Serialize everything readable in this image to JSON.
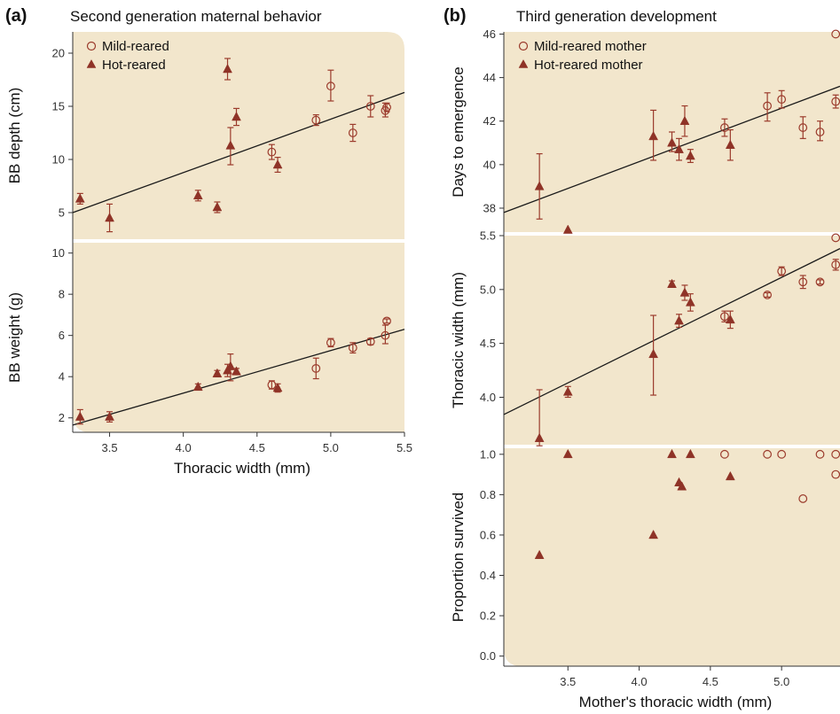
{
  "figure": {
    "panel_a": {
      "letter": "(a)",
      "title": "Second generation maternal behavior"
    },
    "panel_b": {
      "letter": "(b)",
      "title": "Third generation development"
    }
  },
  "colors": {
    "background": "#f2e6cc",
    "marker": "#9b3b2c",
    "marker_fill": "#8f3327",
    "fit_line": "#1a1a1a"
  },
  "chart_data": [
    {
      "id": "a_top",
      "type": "scatter",
      "ylabel": "BB depth (cm)",
      "xlabel": "",
      "xlim": [
        3.25,
        5.5
      ],
      "ylim": [
        2.5,
        22
      ],
      "yticks": [
        5,
        10,
        15,
        20
      ],
      "xticks": [],
      "legend": {
        "position": "top-left",
        "entries": [
          "Mild-reared",
          "Hot-reared"
        ]
      },
      "fit_line": {
        "x1": 3.25,
        "y1": 5.0,
        "x2": 5.5,
        "y2": 16.3
      },
      "series": [
        {
          "name": "Mild-reared",
          "marker": "open-circle",
          "points": [
            {
              "x": 4.6,
              "y": 10.7,
              "lo": 10.0,
              "hi": 11.4
            },
            {
              "x": 4.9,
              "y": 13.7,
              "lo": 13.2,
              "hi": 14.2
            },
            {
              "x": 5.0,
              "y": 16.9,
              "lo": 15.5,
              "hi": 18.4
            },
            {
              "x": 5.15,
              "y": 12.5,
              "lo": 11.7,
              "hi": 13.3
            },
            {
              "x": 5.27,
              "y": 15.0,
              "lo": 14.0,
              "hi": 16.0
            },
            {
              "x": 5.37,
              "y": 14.6,
              "lo": 14.0,
              "hi": 15.3
            },
            {
              "x": 5.38,
              "y": 14.9,
              "lo": 14.5,
              "hi": 15.3
            }
          ]
        },
        {
          "name": "Hot-reared",
          "marker": "filled-triangle",
          "points": [
            {
              "x": 3.3,
              "y": 6.3,
              "lo": 5.8,
              "hi": 6.8
            },
            {
              "x": 3.5,
              "y": 4.5,
              "lo": 3.2,
              "hi": 5.8
            },
            {
              "x": 4.1,
              "y": 6.6,
              "lo": 6.1,
              "hi": 7.1
            },
            {
              "x": 4.23,
              "y": 5.5,
              "lo": 5.0,
              "hi": 6.0
            },
            {
              "x": 4.3,
              "y": 18.5,
              "lo": 17.5,
              "hi": 19.5
            },
            {
              "x": 4.32,
              "y": 11.3,
              "lo": 9.5,
              "hi": 13.0
            },
            {
              "x": 4.36,
              "y": 14.0,
              "lo": 13.2,
              "hi": 14.8
            },
            {
              "x": 4.64,
              "y": 9.5,
              "lo": 8.8,
              "hi": 10.2
            }
          ]
        }
      ]
    },
    {
      "id": "a_bottom",
      "type": "scatter",
      "ylabel": "BB weight (g)",
      "xlabel": "Thoracic width (mm)",
      "xlim": [
        3.25,
        5.5
      ],
      "ylim": [
        1.3,
        10.5
      ],
      "yticks": [
        2,
        4,
        6,
        8,
        10
      ],
      "xticks": [
        3.5,
        4.0,
        4.5,
        5.0,
        5.5
      ],
      "xticklabels": [
        "3.5",
        "4.0",
        "4.5",
        "5.0",
        "5.5"
      ],
      "fit_line": {
        "x1": 3.25,
        "y1": 1.65,
        "x2": 5.5,
        "y2": 6.3
      },
      "series": [
        {
          "name": "Mild-reared",
          "marker": "open-circle",
          "points": [
            {
              "x": 4.6,
              "y": 3.6,
              "lo": 3.4,
              "hi": 3.8
            },
            {
              "x": 4.9,
              "y": 4.4,
              "lo": 3.9,
              "hi": 4.9
            },
            {
              "x": 5.0,
              "y": 5.65,
              "lo": 5.45,
              "hi": 5.85
            },
            {
              "x": 5.15,
              "y": 5.4,
              "lo": 5.15,
              "hi": 5.65
            },
            {
              "x": 5.27,
              "y": 5.7,
              "lo": 5.55,
              "hi": 5.85
            },
            {
              "x": 5.37,
              "y": 6.0,
              "lo": 5.6,
              "hi": 6.5
            },
            {
              "x": 5.38,
              "y": 6.7,
              "lo": 6.6,
              "hi": 6.8
            }
          ]
        },
        {
          "name": "Hot-reared",
          "marker": "filled-triangle",
          "points": [
            {
              "x": 3.3,
              "y": 2.05,
              "lo": 1.7,
              "hi": 2.4
            },
            {
              "x": 3.5,
              "y": 2.05,
              "lo": 1.8,
              "hi": 2.3
            },
            {
              "x": 4.1,
              "y": 3.5,
              "lo": 3.35,
              "hi": 3.65
            },
            {
              "x": 4.23,
              "y": 4.15,
              "lo": 4.0,
              "hi": 4.3
            },
            {
              "x": 4.3,
              "y": 4.3,
              "lo": 4.0,
              "hi": 4.6
            },
            {
              "x": 4.32,
              "y": 4.5,
              "lo": 3.8,
              "hi": 5.1
            },
            {
              "x": 4.36,
              "y": 4.25,
              "lo": 4.1,
              "hi": 4.4
            },
            {
              "x": 4.64,
              "y": 3.45,
              "lo": 3.25,
              "hi": 3.65
            }
          ]
        }
      ]
    },
    {
      "id": "b_top",
      "type": "scatter",
      "ylabel": "Days to emergence",
      "xlabel": "",
      "xlim": [
        3.05,
        5.41
      ],
      "ylim": [
        36.9,
        46.1
      ],
      "yticks": [
        38,
        40,
        42,
        44,
        46
      ],
      "xticks": [],
      "legend": {
        "position": "top-left",
        "entries": [
          "Mild-reared mother",
          "Hot-reared mother"
        ]
      },
      "fit_line": {
        "x1": 3.05,
        "y1": 37.8,
        "x2": 5.41,
        "y2": 43.6
      },
      "series": [
        {
          "name": "Mild-reared mother",
          "marker": "open-circle",
          "points": [
            {
              "x": 4.6,
              "y": 41.7,
              "lo": 41.3,
              "hi": 42.1
            },
            {
              "x": 4.9,
              "y": 42.7,
              "lo": 42.0,
              "hi": 43.3
            },
            {
              "x": 5.0,
              "y": 43.0,
              "lo": 42.6,
              "hi": 43.4
            },
            {
              "x": 5.15,
              "y": 41.7,
              "lo": 41.2,
              "hi": 42.2
            },
            {
              "x": 5.27,
              "y": 41.5,
              "lo": 41.1,
              "hi": 42.0
            },
            {
              "x": 5.38,
              "y": 42.9,
              "lo": 42.6,
              "hi": 43.2
            },
            {
              "x": 5.38,
              "y": 46.0,
              "lo": 46.0,
              "hi": 46.0
            }
          ]
        },
        {
          "name": "Hot-reared mother",
          "marker": "filled-triangle",
          "points": [
            {
              "x": 3.3,
              "y": 39.0,
              "lo": 37.5,
              "hi": 40.5
            },
            {
              "x": 3.5,
              "y": 37.0,
              "lo": 37.0,
              "hi": 37.0
            },
            {
              "x": 4.1,
              "y": 41.3,
              "lo": 40.2,
              "hi": 42.5
            },
            {
              "x": 4.23,
              "y": 41.0,
              "lo": 40.6,
              "hi": 41.5
            },
            {
              "x": 4.28,
              "y": 40.7,
              "lo": 40.2,
              "hi": 41.2
            },
            {
              "x": 4.32,
              "y": 42.0,
              "lo": 41.3,
              "hi": 42.7
            },
            {
              "x": 4.36,
              "y": 40.4,
              "lo": 40.1,
              "hi": 40.7
            },
            {
              "x": 4.64,
              "y": 40.9,
              "lo": 40.2,
              "hi": 41.6
            }
          ]
        }
      ]
    },
    {
      "id": "b_middle",
      "type": "scatter",
      "ylabel": "Thoracic width (mm)",
      "xlabel": "",
      "xlim": [
        3.05,
        5.41
      ],
      "ylim": [
        3.56,
        5.5
      ],
      "yticks": [
        4.0,
        4.5,
        5.0,
        5.5
      ],
      "yticklabels": [
        "4.0",
        "4.5",
        "5.0",
        "5.5"
      ],
      "xticks": [],
      "fit_line": {
        "x1": 3.05,
        "y1": 3.84,
        "x2": 5.41,
        "y2": 5.38
      },
      "series": [
        {
          "name": "Mild-reared mother",
          "marker": "open-circle",
          "points": [
            {
              "x": 4.6,
              "y": 4.75,
              "lo": 4.7,
              "hi": 4.8
            },
            {
              "x": 4.9,
              "y": 4.95,
              "lo": 4.93,
              "hi": 4.97
            },
            {
              "x": 5.0,
              "y": 5.17,
              "lo": 5.13,
              "hi": 5.21
            },
            {
              "x": 5.15,
              "y": 5.07,
              "lo": 5.01,
              "hi": 5.13
            },
            {
              "x": 5.27,
              "y": 5.07,
              "lo": 5.05,
              "hi": 5.09
            },
            {
              "x": 5.38,
              "y": 5.23,
              "lo": 5.18,
              "hi": 5.28
            },
            {
              "x": 5.38,
              "y": 5.48,
              "lo": 5.48,
              "hi": 5.48
            }
          ]
        },
        {
          "name": "Hot-reared mother",
          "marker": "filled-triangle",
          "points": [
            {
              "x": 3.3,
              "y": 3.62,
              "lo": 3.55,
              "hi": 4.07
            },
            {
              "x": 3.5,
              "y": 4.05,
              "lo": 4.0,
              "hi": 4.1
            },
            {
              "x": 4.1,
              "y": 4.4,
              "lo": 4.02,
              "hi": 4.76
            },
            {
              "x": 4.23,
              "y": 5.05,
              "lo": 5.02,
              "hi": 5.08
            },
            {
              "x": 4.28,
              "y": 4.71,
              "lo": 4.65,
              "hi": 4.77
            },
            {
              "x": 4.32,
              "y": 4.97,
              "lo": 4.9,
              "hi": 5.04
            },
            {
              "x": 4.36,
              "y": 4.88,
              "lo": 4.8,
              "hi": 4.96
            },
            {
              "x": 4.64,
              "y": 4.72,
              "lo": 4.64,
              "hi": 4.8
            }
          ]
        }
      ]
    },
    {
      "id": "b_bottom",
      "type": "scatter",
      "ylabel": "Proportion survived",
      "xlabel": "Mother's thoracic width (mm)",
      "xlim": [
        3.05,
        5.41
      ],
      "ylim": [
        -0.05,
        1.03
      ],
      "yticks": [
        0.0,
        0.2,
        0.4,
        0.6,
        0.8,
        1.0
      ],
      "yticklabels": [
        "0.0",
        "0.2",
        "0.4",
        "0.6",
        "0.8",
        "1.0"
      ],
      "xticks": [
        3.5,
        4.0,
        4.5,
        5.0
      ],
      "xticklabels": [
        "3.5",
        "4.0",
        "4.5",
        "5.0"
      ],
      "series": [
        {
          "name": "Mild-reared mother",
          "marker": "open-circle",
          "points": [
            {
              "x": 4.6,
              "y": 1.0
            },
            {
              "x": 4.9,
              "y": 1.0
            },
            {
              "x": 5.0,
              "y": 1.0
            },
            {
              "x": 5.15,
              "y": 0.78
            },
            {
              "x": 5.27,
              "y": 1.0
            },
            {
              "x": 5.38,
              "y": 1.0
            },
            {
              "x": 5.38,
              "y": 0.9
            }
          ]
        },
        {
          "name": "Hot-reared mother",
          "marker": "filled-triangle",
          "points": [
            {
              "x": 3.3,
              "y": 0.5
            },
            {
              "x": 3.5,
              "y": 1.0
            },
            {
              "x": 4.1,
              "y": 0.6
            },
            {
              "x": 4.23,
              "y": 1.0
            },
            {
              "x": 4.28,
              "y": 0.86
            },
            {
              "x": 4.3,
              "y": 0.84
            },
            {
              "x": 4.36,
              "y": 1.0
            },
            {
              "x": 4.64,
              "y": 0.89
            }
          ]
        }
      ]
    }
  ]
}
